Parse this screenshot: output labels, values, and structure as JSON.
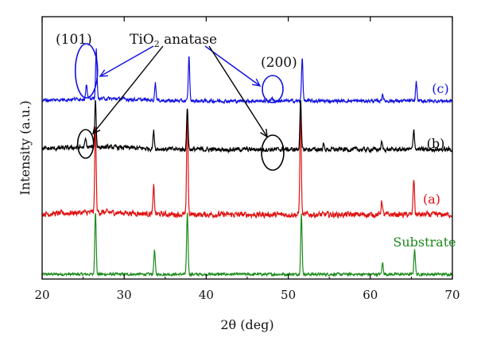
{
  "chart_data": {
    "type": "line",
    "xlabel": "2θ (deg)",
    "ylabel": "Intensity (a.u.)",
    "xlim": [
      20,
      70
    ],
    "xticks": [
      "20",
      "30",
      "40",
      "50",
      "60",
      "70"
    ],
    "grid": false,
    "legend": "none",
    "series": [
      {
        "name": "Substrate",
        "color": "#1a8a1a",
        "offset": 0,
        "noise": 2.4,
        "peaks": [
          [
            26.5,
            80
          ],
          [
            33.7,
            30
          ],
          [
            37.7,
            78
          ],
          [
            51.6,
            75
          ],
          [
            61.5,
            14
          ],
          [
            65.4,
            32
          ]
        ]
      },
      {
        "name": "(a)",
        "color": "#e01010",
        "offset": 1,
        "noise": 5.0,
        "peaks": [
          [
            26.5,
            110
          ],
          [
            33.6,
            34
          ],
          [
            37.7,
            130
          ],
          [
            51.5,
            132
          ],
          [
            61.4,
            18
          ],
          [
            65.3,
            46
          ]
        ]
      },
      {
        "name": "(b)",
        "color": "#000000",
        "offset": 2,
        "noise": 4.0,
        "peaks": [
          [
            25.3,
            10
          ],
          [
            26.5,
            60
          ],
          [
            33.6,
            22
          ],
          [
            37.7,
            54
          ],
          [
            51.5,
            62
          ],
          [
            54.3,
            6
          ],
          [
            61.4,
            9
          ],
          [
            65.3,
            26
          ]
        ]
      },
      {
        "name": "(c)",
        "color": "#1010e0",
        "offset": 3,
        "noise": 3.0,
        "peaks": [
          [
            25.4,
            18
          ],
          [
            26.6,
            62
          ],
          [
            33.8,
            22
          ],
          [
            37.9,
            56
          ],
          [
            48.0,
            5
          ],
          [
            51.7,
            55
          ],
          [
            61.5,
            9
          ],
          [
            65.6,
            24
          ]
        ]
      }
    ],
    "annotations": {
      "title": "TiO",
      "title_sub": "2",
      "title_rest": " anatase",
      "peak_101": "(101)",
      "peak_200": "(200)"
    }
  }
}
